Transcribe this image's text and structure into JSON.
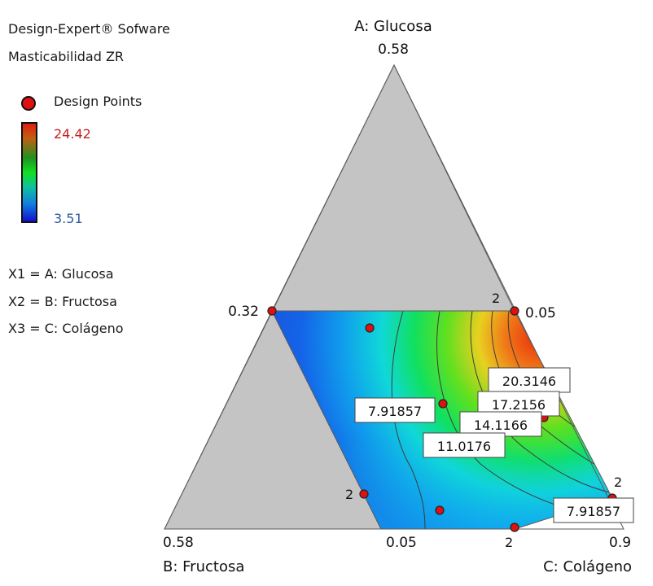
{
  "header": {
    "software": "Design-Expert® Sofware",
    "response": "Masticabilidad ZR"
  },
  "legend": {
    "design_points_label": "Design Points",
    "max_value": "24.42",
    "min_value": "3.51",
    "colors": {
      "high": "#e02010",
      "mid": "#10e020",
      "low": "#1010d0",
      "point": "#e01010"
    }
  },
  "variables": [
    "X1 = A: Glucosa",
    "X2 = B: Fructosa",
    "X3 = C: Colágeno"
  ],
  "chart_data": {
    "type": "heatmap",
    "subtype": "ternary mixture contour plot",
    "axes": {
      "A": {
        "name": "A: Glucosa",
        "vertex_label": "0.58",
        "low_label": "0.32"
      },
      "B": {
        "name": "B: Fructosa",
        "vertex_label": "0.58",
        "low_label": "0.05"
      },
      "C": {
        "name": "C: Colágeno",
        "vertex_label": "0.9",
        "low_label": "0.05"
      }
    },
    "contour_levels": [
      "7.91857",
      "11.0176",
      "14.1166",
      "17.2156",
      "20.3146"
    ],
    "contour_label_7_91857_repeat": "7.91857",
    "color_range": [
      3.51,
      24.42
    ],
    "design_point_count_labels": [
      "2",
      "2",
      "2",
      "2"
    ],
    "design_points": [
      {
        "A": 0.32,
        "B": 0.05,
        "C": 0.63
      },
      {
        "A": 0.32,
        "B": 0.63,
        "C": 0.05
      },
      {
        "A": 0.26,
        "B": 0.45,
        "C": 0.29
      },
      {
        "A": 0.17,
        "B": 0.29,
        "C": 0.54
      },
      {
        "A": 0.16,
        "B": 0.11,
        "C": 0.73
      },
      {
        "A": 0.04,
        "B": 0.5,
        "C": 0.46
      },
      {
        "A": 0.04,
        "B": 0.36,
        "C": 0.6
      },
      {
        "A": 0.05,
        "B": 0.05,
        "C": 0.9
      },
      {
        "A": 0.01,
        "B": 0.21,
        "C": 0.78
      }
    ]
  }
}
